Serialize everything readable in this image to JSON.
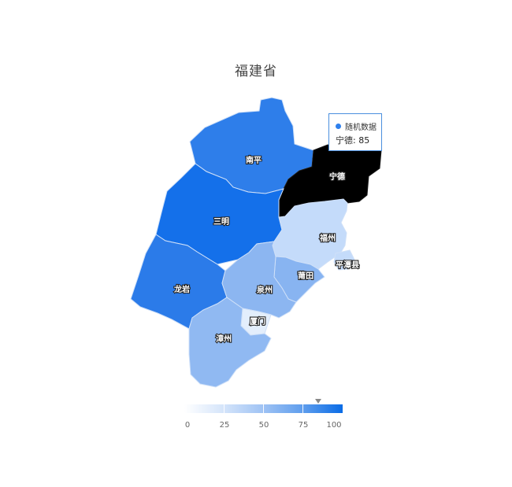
{
  "title": "福建省",
  "regions": [
    {
      "id": "nanping",
      "name": "南平",
      "value": 70,
      "color": "#2e7eea"
    },
    {
      "id": "ningde",
      "name": "宁德",
      "value": 85,
      "color": "#000000",
      "highlighted": true
    },
    {
      "id": "sanming",
      "name": "三明",
      "value": 85,
      "color": "#1470ea"
    },
    {
      "id": "fuzhou",
      "name": "福州",
      "value": 22,
      "color": "#c4dbfa"
    },
    {
      "id": "pingtan",
      "name": "平潭县",
      "value": 22,
      "color": "#c4dbfa"
    },
    {
      "id": "putian",
      "name": "莆田",
      "value": 52,
      "color": "#88b4f1"
    },
    {
      "id": "longyan",
      "name": "龙岩",
      "value": 78,
      "color": "#2b7be9"
    },
    {
      "id": "quanzhou",
      "name": "泉州",
      "value": 50,
      "color": "#8cb6f1"
    },
    {
      "id": "xiamen",
      "name": "厦门",
      "value": 12,
      "color": "#e3eefc"
    },
    {
      "id": "zhangzhou",
      "name": "漳州",
      "value": 48,
      "color": "#90b9f2"
    }
  ],
  "tooltip": {
    "series_name": "随机数据",
    "line": "宁德: 85"
  },
  "legend": {
    "labels": [
      "0",
      "25",
      "50",
      "75",
      "100"
    ],
    "min": 0,
    "max": 100,
    "pointer_value": 85,
    "color_low": "#ffffff",
    "color_high": "#0a6ce6"
  }
}
